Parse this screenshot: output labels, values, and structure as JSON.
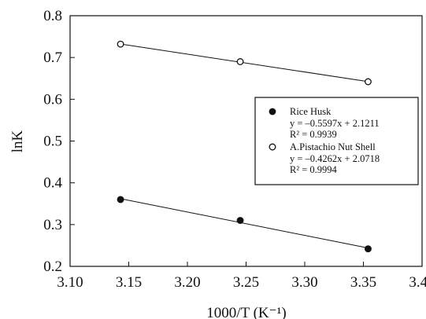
{
  "chart_data": {
    "type": "scatter",
    "xlabel": "1000/T (K⁻¹)",
    "ylabel": "lnK",
    "xlim": [
      3.1,
      3.4
    ],
    "ylim": [
      0.2,
      0.8
    ],
    "x_ticks": [
      "3.10",
      "3.15",
      "3.20",
      "3.25",
      "3.30",
      "3.35",
      "3.40"
    ],
    "y_ticks": [
      "0.2",
      "0.3",
      "0.4",
      "0.5",
      "0.6",
      "0.7",
      "0.8"
    ],
    "grid": false,
    "legend_position": "right",
    "series": [
      {
        "name": "Rice Husk",
        "marker": "filled-circle",
        "x": [
          3.143,
          3.245,
          3.354
        ],
        "y": [
          0.36,
          0.31,
          0.242
        ],
        "fit": {
          "slope": -0.5597,
          "intercept": 2.1211
        },
        "equation": "y = –0.5597x + 2.1211",
        "r2": "R² = 0.9939"
      },
      {
        "name": "A.Pistachio Nut Shell",
        "marker": "open-circle",
        "x": [
          3.143,
          3.245,
          3.354
        ],
        "y": [
          0.732,
          0.69,
          0.642
        ],
        "fit": {
          "slope": -0.4262,
          "intercept": 2.0718
        },
        "equation": "y = –0.4262x + 2.0718",
        "r2": "R² = 0.9994"
      }
    ]
  }
}
